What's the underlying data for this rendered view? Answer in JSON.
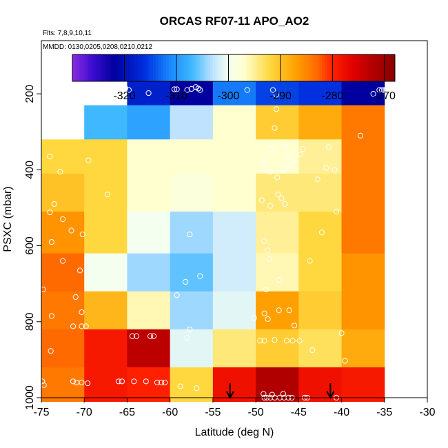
{
  "chart_data": {
    "type": "heatmap",
    "title": "ORCAS RF07-11 APO_AO2",
    "subtitle_flights": "Flts: 7,8,9,10,11",
    "subtitle_dates": "MMDD: 0130,0205,0208,0210,0212",
    "xlabel": "Latitude (deg N)",
    "ylabel": "PSXC (mbar)",
    "xlim": [
      -75,
      -30
    ],
    "ylim": [
      1000,
      60
    ],
    "xticks": [
      -75,
      -70,
      -65,
      -60,
      -55,
      -50,
      -45,
      -40,
      -35,
      -30
    ],
    "yticks": [
      200,
      400,
      600,
      800,
      1000
    ],
    "colorbar": {
      "range": [
        -330,
        -268
      ],
      "ticks": [
        -320,
        -310,
        -300,
        -290,
        -280,
        -270
      ],
      "stops": [
        {
          "v": -330,
          "c": "#8a2be2"
        },
        {
          "v": -326,
          "c": "#3a0ccf"
        },
        {
          "v": -322,
          "c": "#00009e"
        },
        {
          "v": -316,
          "c": "#0030e0"
        },
        {
          "v": -311,
          "c": "#1a8cff"
        },
        {
          "v": -307,
          "c": "#40b8ff"
        },
        {
          "v": -303,
          "c": "#bfe3ff"
        },
        {
          "v": -300,
          "c": "#f4fff0"
        },
        {
          "v": -297,
          "c": "#ffffd0"
        },
        {
          "v": -292,
          "c": "#ffd840"
        },
        {
          "v": -287,
          "c": "#ffa000"
        },
        {
          "v": -283,
          "c": "#ff6a00"
        },
        {
          "v": -280,
          "c": "#ff2000"
        },
        {
          "v": -276,
          "c": "#e00000"
        },
        {
          "v": -272,
          "c": "#b00000"
        },
        {
          "v": -268,
          "c": "#880000"
        }
      ]
    },
    "lat_edges": [
      -75,
      -70,
      -65,
      -60,
      -55,
      -50,
      -45,
      -40,
      -35
    ],
    "pres_edges": [
      110,
      230,
      320,
      410,
      510,
      620,
      720,
      820,
      920,
      1010
    ],
    "cells": [
      [
        null,
        null,
        -318,
        -322,
        -312,
        -315,
        -316,
        -322
      ],
      [
        null,
        -307,
        -309,
        -303,
        -297,
        -291,
        -288,
        -284
      ],
      [
        -292,
        -292,
        -297,
        -297,
        -297,
        -297,
        -295,
        -284
      ],
      [
        -290,
        -292,
        -297,
        -298,
        -297,
        -294,
        -294,
        -284
      ],
      [
        -286,
        -292,
        -300,
        -304,
        -302,
        -295,
        -292,
        -284
      ],
      [
        -283,
        -300,
        -304,
        -306,
        -302,
        -296,
        -292,
        -286
      ],
      [
        -284,
        -289,
        -296,
        -304,
        -301,
        -287,
        -291,
        -286
      ],
      [
        -283,
        -279,
        -273,
        -301,
        -294,
        -291,
        -293,
        -288
      ],
      [
        -284,
        -279,
        -280,
        -292,
        -278,
        -272,
        -278,
        -279
      ]
    ],
    "samples": [
      [
        -65.2,
        185
      ],
      [
        -64.8,
        190
      ],
      [
        -62.5,
        198
      ],
      [
        -59.5,
        188
      ],
      [
        -59.2,
        188
      ],
      [
        -58,
        190
      ],
      [
        -57.5,
        187
      ],
      [
        -57.0,
        182
      ],
      [
        -56.7,
        186
      ],
      [
        -56.5,
        190
      ],
      [
        -51,
        190
      ],
      [
        -48,
        190
      ],
      [
        -47.6,
        202
      ],
      [
        -47.6,
        240
      ],
      [
        -35.6,
        190
      ],
      [
        -35.3,
        190
      ],
      [
        -35.0,
        190
      ],
      [
        -34.8,
        190
      ],
      [
        -36.3,
        200
      ],
      [
        -37.8,
        310
      ],
      [
        -47.8,
        290
      ],
      [
        -44.5,
        345
      ],
      [
        -74.0,
        365
      ],
      [
        -72.8,
        405
      ],
      [
        -69.5,
        375
      ],
      [
        -48.2,
        345
      ],
      [
        -46.6,
        340
      ],
      [
        -46.2,
        365
      ],
      [
        -45.7,
        380
      ],
      [
        -44.8,
        360
      ],
      [
        -41.5,
        340
      ],
      [
        -41.8,
        395
      ],
      [
        -40.8,
        400
      ],
      [
        -42.8,
        425
      ],
      [
        -49.0,
        375
      ],
      [
        -49.0,
        395
      ],
      [
        -48.3,
        405
      ],
      [
        -47.5,
        420
      ],
      [
        -46.8,
        400
      ],
      [
        -46.3,
        390
      ],
      [
        -73.5,
        490
      ],
      [
        -74.0,
        512
      ],
      [
        -72.5,
        530
      ],
      [
        -67.3,
        465
      ],
      [
        -47.4,
        465
      ],
      [
        -47.0,
        475
      ],
      [
        -49.3,
        480
      ],
      [
        -48.3,
        495
      ],
      [
        -46.6,
        490
      ],
      [
        -40.6,
        510
      ],
      [
        -73.8,
        590
      ],
      [
        -71.5,
        560
      ],
      [
        -70.2,
        570
      ],
      [
        -57.7,
        570
      ],
      [
        -49.0,
        588
      ],
      [
        -48.6,
        612
      ],
      [
        -42.3,
        565
      ],
      [
        -43.7,
        640
      ],
      [
        -48.4,
        635
      ],
      [
        -74.8,
        715
      ],
      [
        -72.5,
        640
      ],
      [
        -70.5,
        665
      ],
      [
        -73.8,
        785
      ],
      [
        -71.0,
        735
      ],
      [
        -56.5,
        680
      ],
      [
        -58.2,
        695
      ],
      [
        -59.2,
        730
      ],
      [
        -48.8,
        715
      ],
      [
        -47.3,
        690
      ],
      [
        -71.3,
        812
      ],
      [
        -70.3,
        812
      ],
      [
        -69.8,
        812
      ],
      [
        -70.3,
        775
      ],
      [
        -47.3,
        770
      ],
      [
        -49.0,
        778
      ],
      [
        -48.6,
        793
      ],
      [
        -50.2,
        790
      ],
      [
        -46.1,
        770
      ],
      [
        -45.5,
        810
      ],
      [
        -40.0,
        830
      ],
      [
        -57.7,
        820
      ],
      [
        -58.0,
        842
      ],
      [
        -64.4,
        838
      ],
      [
        -63.9,
        838
      ],
      [
        -62.3,
        838
      ],
      [
        -61.9,
        838
      ],
      [
        -49.5,
        850
      ],
      [
        -49.0,
        850
      ],
      [
        -47.8,
        848
      ],
      [
        -46.4,
        850
      ],
      [
        -45.7,
        850
      ],
      [
        -44.9,
        850
      ],
      [
        -73.9,
        877
      ],
      [
        -39.6,
        903
      ],
      [
        -43.4,
        875
      ],
      [
        -71.3,
        957
      ],
      [
        -70.9,
        960
      ],
      [
        -70.3,
        960
      ],
      [
        -69.6,
        962
      ],
      [
        -66.0,
        957
      ],
      [
        -65.6,
        957
      ],
      [
        -64.2,
        957
      ],
      [
        -62.8,
        957
      ],
      [
        -61.5,
        960
      ],
      [
        -61.0,
        960
      ],
      [
        -60.6,
        960
      ],
      [
        -58.8,
        970
      ],
      [
        -56.9,
        975
      ],
      [
        -74.9,
        957
      ],
      [
        -74.7,
        967
      ],
      [
        -49.0,
        1000
      ],
      [
        -48.7,
        1000
      ],
      [
        -48.3,
        1000
      ],
      [
        -47.8,
        1000
      ],
      [
        -47.2,
        1000
      ],
      [
        -46.7,
        1000
      ],
      [
        -46.2,
        1000
      ],
      [
        -45.8,
        1000
      ],
      [
        -44.3,
        1000
      ],
      [
        -44.0,
        1000
      ],
      [
        -40.6,
        1000
      ],
      [
        -49.1,
        990
      ],
      [
        -48.1,
        992
      ],
      [
        -46.8,
        990
      ]
    ],
    "arrows_lat": [
      -53,
      -41.3
    ]
  }
}
